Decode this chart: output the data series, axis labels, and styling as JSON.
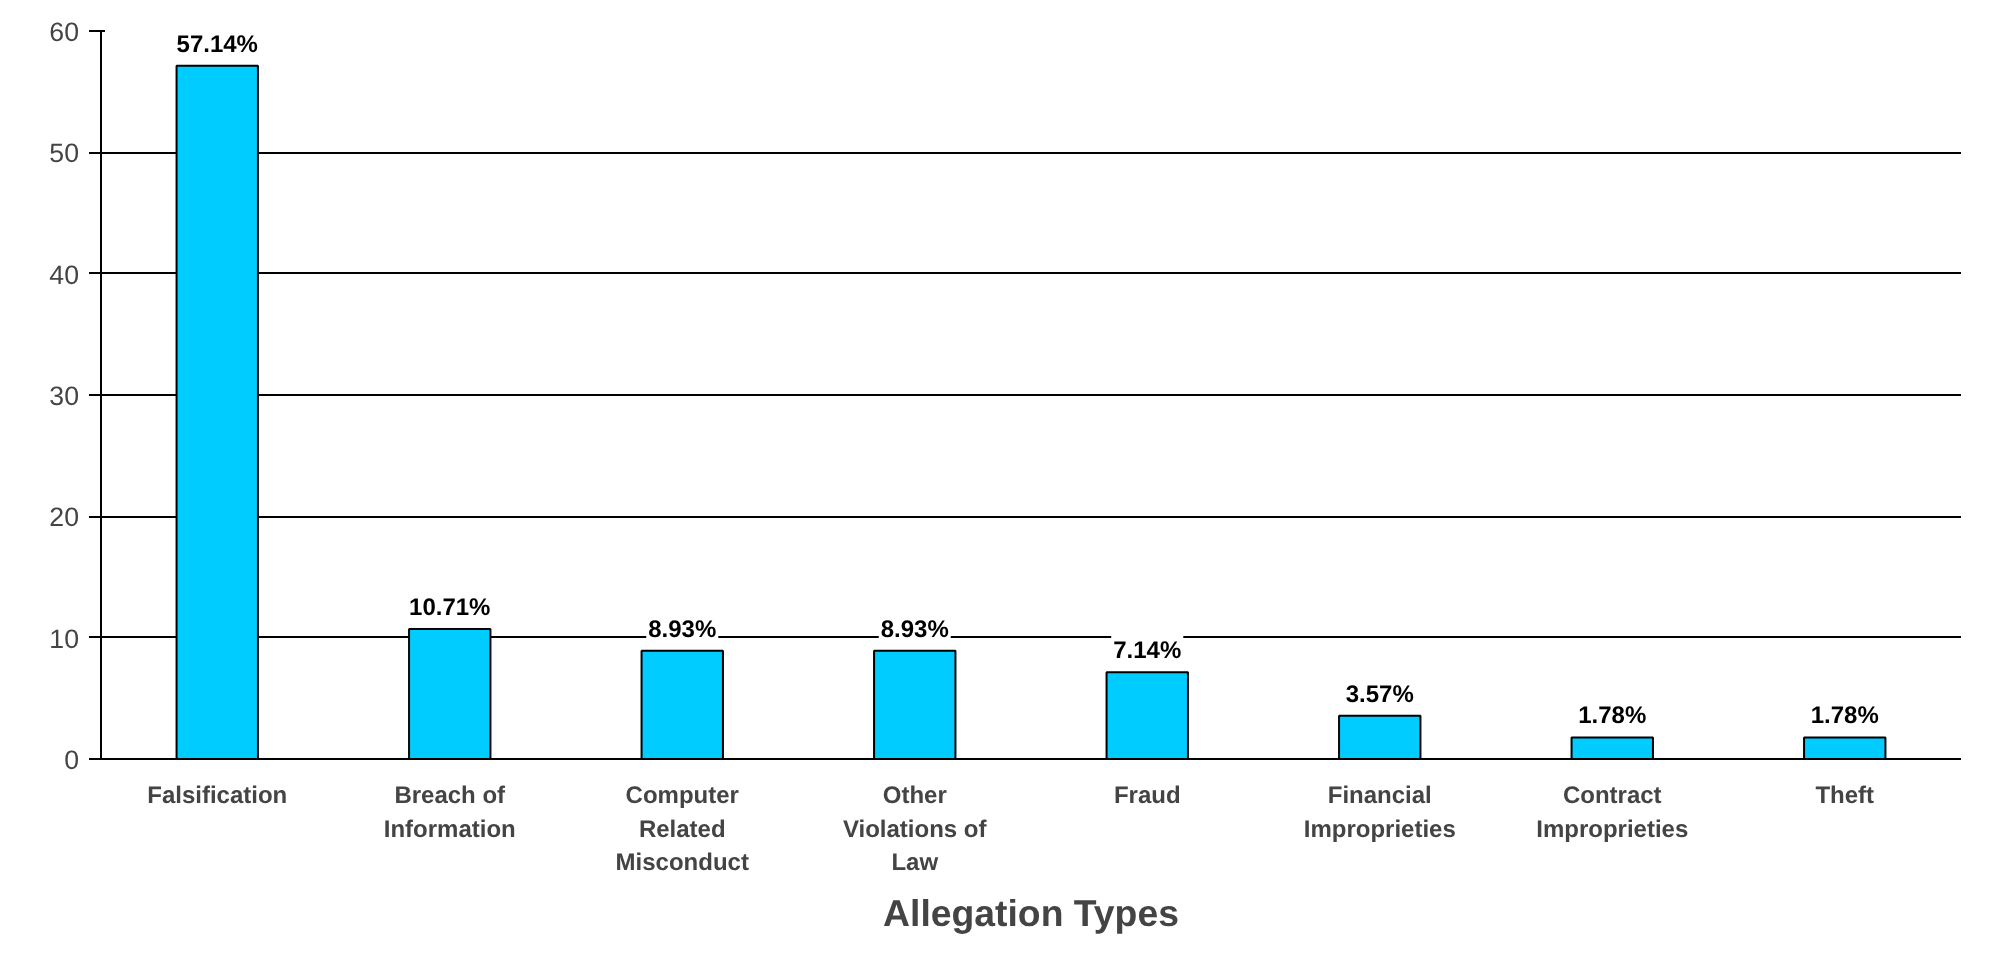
{
  "chart_data": {
    "type": "bar",
    "xlabel": "Allegation Types",
    "categories": [
      "Falsification",
      "Breach of\nInformation",
      "Computer\nRelated\nMisconduct",
      "Other\nViolations of\nLaw",
      "Fraud",
      "Financial\nImproprieties",
      "Contract\nImproprieties",
      "Theft"
    ],
    "values": [
      57.14,
      10.71,
      8.93,
      8.93,
      7.14,
      3.57,
      1.78,
      1.78
    ],
    "value_labels": [
      "57.14%",
      "10.71%",
      "8.93%",
      "8.93%",
      "7.14%",
      "3.57%",
      "1.78%",
      "1.78%"
    ],
    "color": "#00ccff",
    "ylim": [
      0,
      60
    ],
    "yticks": [
      0,
      10,
      20,
      30,
      40,
      50,
      60
    ],
    "grid": "y"
  }
}
